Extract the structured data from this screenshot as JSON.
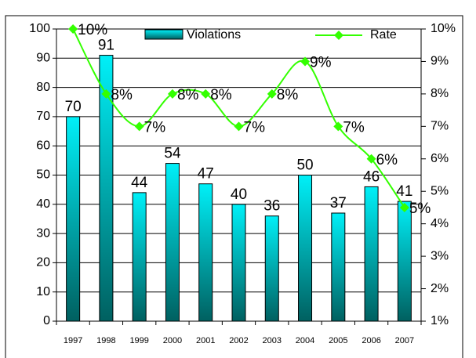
{
  "chart_data": {
    "type": "bar-line",
    "categories": [
      "1997",
      "1998",
      "1999",
      "2000",
      "2001",
      "2002",
      "2003",
      "2004",
      "2005",
      "2006",
      "2007"
    ],
    "series": [
      {
        "name": "Violations",
        "type": "bar",
        "color": "#00d8e0",
        "values": [
          70,
          91,
          44,
          54,
          47,
          40,
          36,
          50,
          37,
          46,
          41
        ]
      },
      {
        "name": "Rate",
        "type": "line",
        "axis": "y2",
        "color": "#33ff00",
        "values": [
          10,
          8,
          7,
          8,
          8,
          7,
          8,
          9,
          7,
          6,
          4.5
        ],
        "value_labels": [
          "10%",
          "8%",
          "7%",
          "8%",
          "8%",
          "7%",
          "8%",
          "9%",
          "7%",
          "6%",
          "5%"
        ]
      }
    ],
    "ylim": [
      0,
      100
    ],
    "yticks": [
      0,
      10,
      20,
      30,
      40,
      50,
      60,
      70,
      80,
      90,
      100
    ],
    "y2lim": [
      1,
      10
    ],
    "y2ticks": [
      {
        "value": 1,
        "label": "1%"
      },
      {
        "value": 2,
        "label": "2%"
      },
      {
        "value": 3,
        "label": "3%"
      },
      {
        "value": 4,
        "label": "4%"
      },
      {
        "value": 5,
        "label": "5%"
      },
      {
        "value": 6,
        "label": "6%"
      },
      {
        "value": 7,
        "label": "7%"
      },
      {
        "value": 8,
        "label": "8%"
      },
      {
        "value": 9,
        "label": "9%"
      },
      {
        "value": 10,
        "label": "10%"
      }
    ],
    "grid": true,
    "legend": "top"
  }
}
